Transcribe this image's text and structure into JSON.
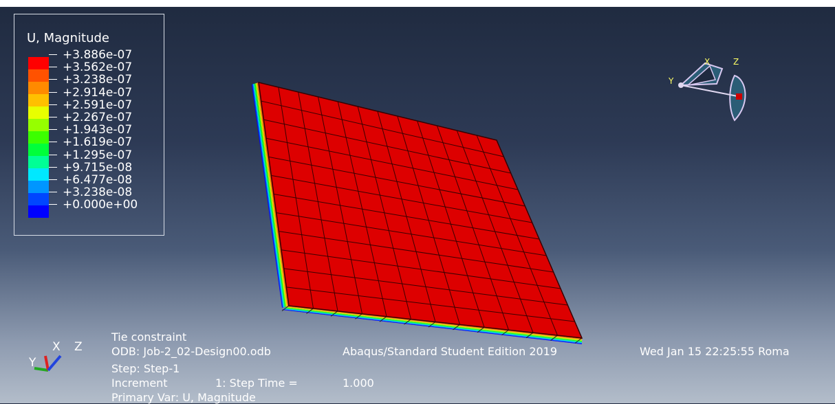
{
  "legend": {
    "title": "U, Magnitude",
    "values": [
      "+3.886e-07",
      "+3.562e-07",
      "+3.238e-07",
      "+2.914e-07",
      "+2.591e-07",
      "+2.267e-07",
      "+1.943e-07",
      "+1.619e-07",
      "+1.295e-07",
      "+9.715e-08",
      "+6.477e-08",
      "+3.238e-08",
      "+0.000e+00"
    ],
    "colors": [
      "#ff0000",
      "#ff5200",
      "#ff8a00",
      "#ffc000",
      "#e8ff00",
      "#96ff00",
      "#3cff00",
      "#00ff3a",
      "#00ff96",
      "#00e8ff",
      "#0096ff",
      "#0046ff",
      "#0000ff"
    ]
  },
  "model": {
    "face_color": "#dd0000",
    "mesh_color": "#3a0000",
    "grid_rows": 12,
    "grid_cols": 12
  },
  "triad": {
    "labels": {
      "x": "X",
      "y": "Y",
      "z": "Z"
    }
  },
  "axes": {
    "labels": {
      "x": "X",
      "y": "Y",
      "z": "Z"
    }
  },
  "info": {
    "title": "Tie constraint",
    "odb": "ODB: Job-2_02-Design00.odb",
    "edition": "Abaqus/Standard Student Edition 2019",
    "date": "Wed Jan 15 22:25:55 Roma",
    "step": "Step: Step-1",
    "increment_label": "Increment",
    "increment_value": "1: Step Time =",
    "step_time": "1.000",
    "primary_var": "Primary Var: U, Magnitude"
  }
}
